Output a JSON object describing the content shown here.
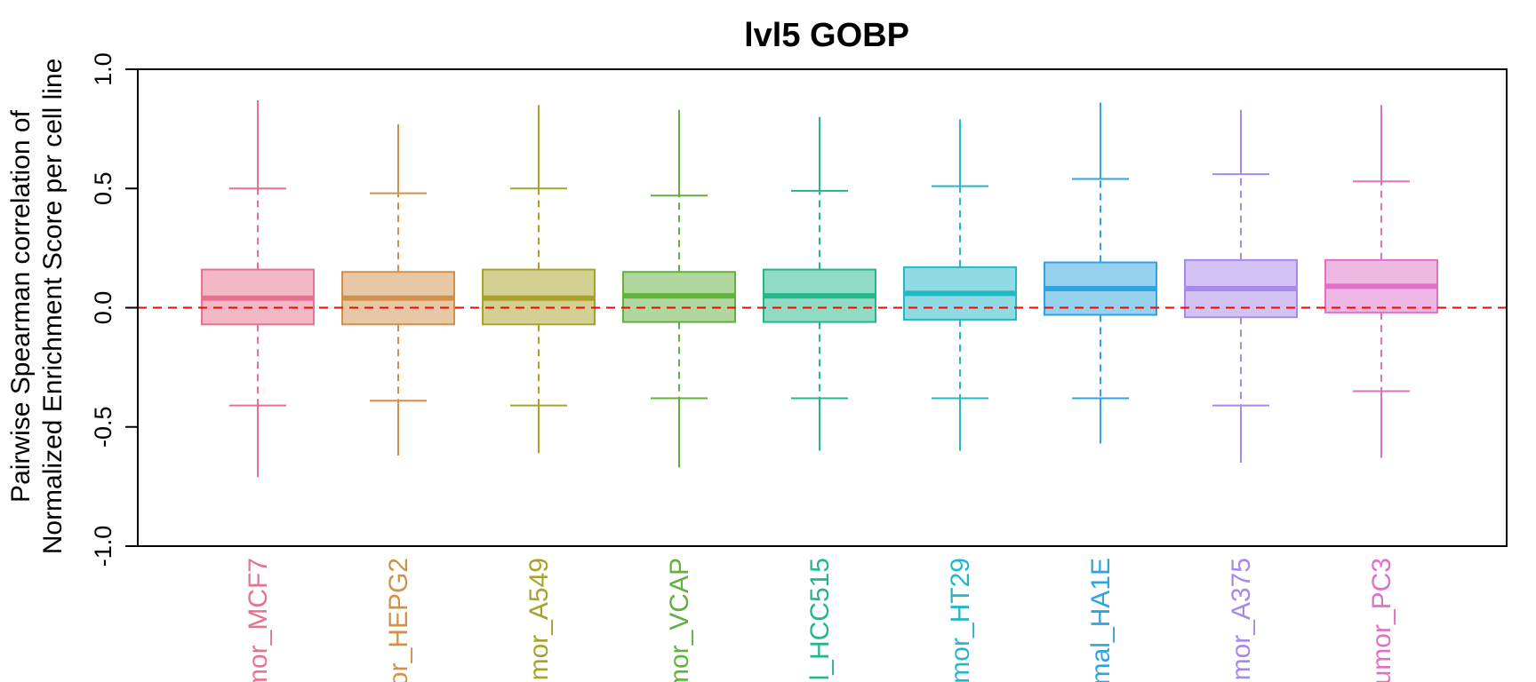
{
  "chart_data": {
    "type": "boxplot",
    "title": "lvl5 GOBP",
    "ylabel_line1": "Pairwise Spearman correlation of",
    "ylabel_line2": "Normalized Enrichment Score per cell line",
    "ylim": [
      -1.0,
      1.0
    ],
    "yticks": [
      -1.0,
      -0.5,
      0.0,
      0.5,
      1.0
    ],
    "ytick_labels": [
      "-1.0",
      "-0.5",
      "0.0",
      "0.5",
      "1.0"
    ],
    "reference_line": {
      "y": 0.0,
      "color": "#ff0000",
      "style": "dashed"
    },
    "grid": false,
    "categories": [
      "mor_MCF7",
      "or_HEPG2",
      "mor_A549",
      "mor_VCAP",
      "l_HCC515",
      "mor_HT29",
      "mal_HA1E",
      "mor_A375",
      "umor_PC3"
    ],
    "colors": [
      "#e8718d",
      "#d29149",
      "#a9a228",
      "#61b13e",
      "#22b88a",
      "#22b8c8",
      "#2ea4e0",
      "#a888ea",
      "#e06fc8"
    ],
    "series": [
      {
        "whisker_low": -0.41,
        "q1": -0.07,
        "median": 0.04,
        "q3": 0.16,
        "whisker_high": 0.5,
        "min": -0.71,
        "max": 0.87
      },
      {
        "whisker_low": -0.39,
        "q1": -0.07,
        "median": 0.04,
        "q3": 0.15,
        "whisker_high": 0.48,
        "min": -0.62,
        "max": 0.77
      },
      {
        "whisker_low": -0.41,
        "q1": -0.07,
        "median": 0.04,
        "q3": 0.16,
        "whisker_high": 0.5,
        "min": -0.61,
        "max": 0.85
      },
      {
        "whisker_low": -0.38,
        "q1": -0.06,
        "median": 0.05,
        "q3": 0.15,
        "whisker_high": 0.47,
        "min": -0.67,
        "max": 0.83
      },
      {
        "whisker_low": -0.38,
        "q1": -0.06,
        "median": 0.05,
        "q3": 0.16,
        "whisker_high": 0.49,
        "min": -0.6,
        "max": 0.8
      },
      {
        "whisker_low": -0.38,
        "q1": -0.05,
        "median": 0.06,
        "q3": 0.17,
        "whisker_high": 0.51,
        "min": -0.6,
        "max": 0.79
      },
      {
        "whisker_low": -0.38,
        "q1": -0.03,
        "median": 0.08,
        "q3": 0.19,
        "whisker_high": 0.54,
        "min": -0.57,
        "max": 0.86
      },
      {
        "whisker_low": -0.41,
        "q1": -0.04,
        "median": 0.08,
        "q3": 0.2,
        "whisker_high": 0.56,
        "min": -0.65,
        "max": 0.83
      },
      {
        "whisker_low": -0.35,
        "q1": -0.02,
        "median": 0.09,
        "q3": 0.2,
        "whisker_high": 0.53,
        "min": -0.63,
        "max": 0.85
      }
    ]
  }
}
